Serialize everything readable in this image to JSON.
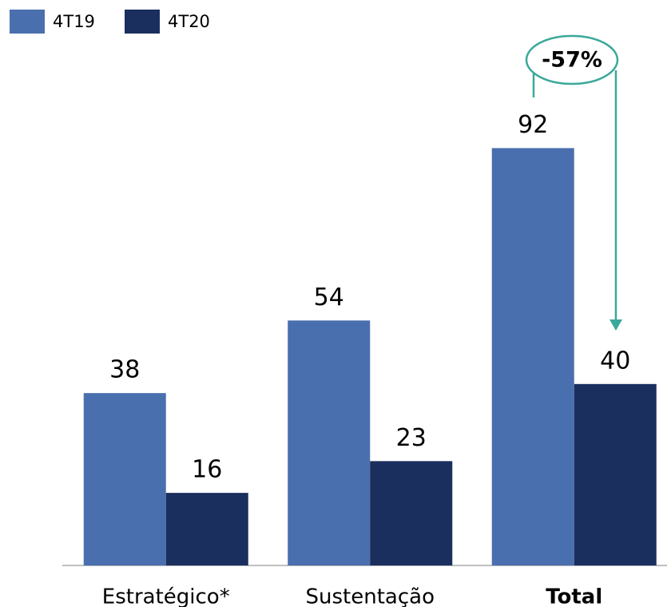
{
  "chart_data": {
    "type": "bar",
    "categories": [
      "Estratégico*",
      "Sustentação",
      "Total"
    ],
    "series": [
      {
        "name": "4T19",
        "color": "#4a6fae",
        "values": [
          38,
          54,
          92
        ]
      },
      {
        "name": "4T20",
        "color": "#1a2f5e",
        "values": [
          16,
          23,
          40
        ]
      }
    ],
    "ylim": [
      0,
      100
    ],
    "annotation": "-57%"
  }
}
